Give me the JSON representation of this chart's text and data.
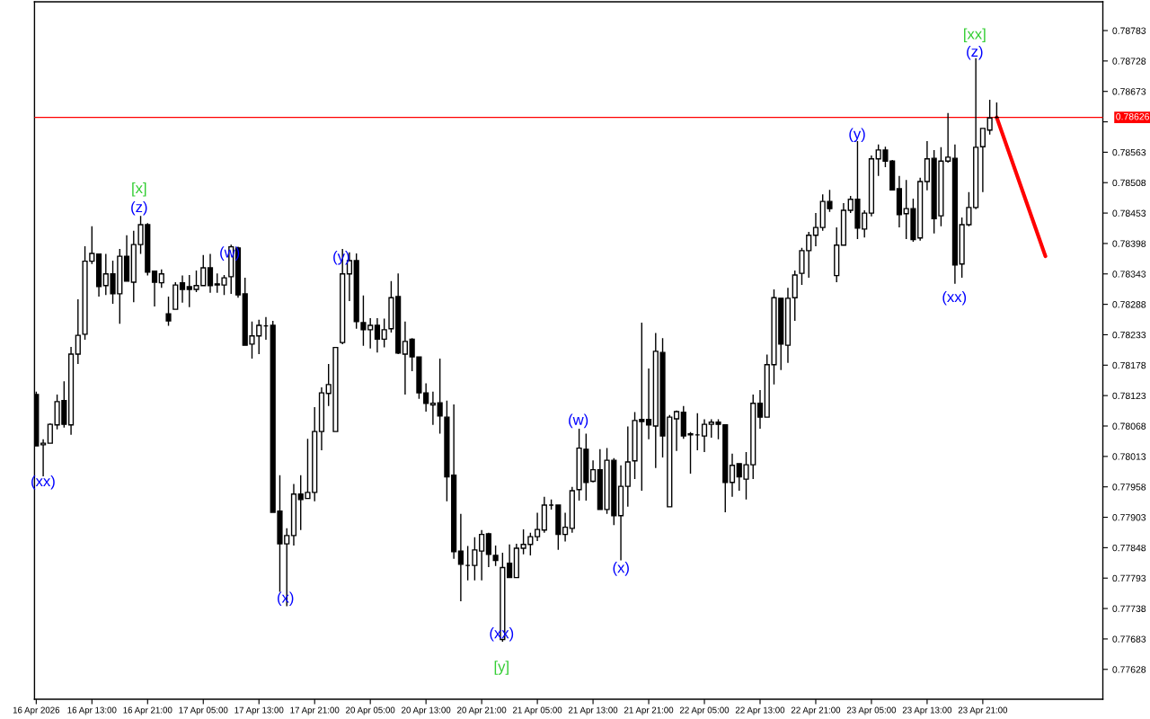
{
  "chart_data": {
    "type": "candlestick",
    "categories": [
      "16 Apr 2026",
      null,
      null,
      null,
      null,
      null,
      null,
      null,
      "16 Apr 13:00",
      null,
      null,
      null,
      null,
      null,
      null,
      null,
      "16 Apr 21:00",
      null,
      null,
      null,
      null,
      null,
      null,
      null,
      "17 Apr 05:00",
      null,
      null,
      null,
      null,
      null,
      null,
      null,
      "17 Apr 13:00",
      null,
      null,
      null,
      null,
      null,
      null,
      null,
      "17 Apr 21:00",
      null,
      null,
      null,
      null,
      null,
      null,
      null,
      "20 Apr 05:00",
      null,
      null,
      null,
      null,
      null,
      null,
      null,
      "20 Apr 13:00",
      null,
      null,
      null,
      null,
      null,
      null,
      null,
      "20 Apr 21:00",
      null,
      null,
      null,
      null,
      null,
      null,
      null,
      "21 Apr 05:00",
      null,
      null,
      null,
      null,
      null,
      null,
      null,
      "21 Apr 13:00",
      null,
      null,
      null,
      null,
      null,
      null,
      null,
      "21 Apr 21:00",
      null,
      null,
      null,
      null,
      null,
      null,
      null,
      "22 Apr 05:00",
      null,
      null,
      null,
      null,
      null,
      null,
      null,
      "22 Apr 13:00",
      null,
      null,
      null,
      null,
      null,
      null,
      null,
      "22 Apr 21:00",
      null,
      null,
      null,
      null,
      null,
      null,
      null,
      "23 Apr 05:00",
      null,
      null,
      null,
      null,
      null,
      null,
      null,
      "23 Apr 13:00",
      null,
      null,
      null,
      null,
      null,
      null,
      null,
      "23 Apr 21:00",
      null,
      null,
      null,
      null,
      null,
      null,
      null,
      null,
      null,
      null,
      null,
      null,
      null,
      null,
      null,
      null
    ],
    "ohlc": [
      [
        0.78125,
        0.7813,
        0.78032,
        0.78032
      ],
      [
        0.78034,
        0.78044,
        0.77977,
        0.78037
      ],
      [
        0.78037,
        0.78073,
        0.78036,
        0.78071
      ],
      [
        0.7807,
        0.78125,
        0.78062,
        0.78112
      ],
      [
        0.78114,
        0.78149,
        0.78065,
        0.78071
      ],
      [
        0.7807,
        0.78211,
        0.78052,
        0.78198
      ],
      [
        0.78198,
        0.78297,
        0.7818,
        0.78232
      ],
      [
        0.78234,
        0.78393,
        0.78224,
        0.78366
      ],
      [
        0.78366,
        0.78429,
        0.78361,
        0.7838
      ],
      [
        0.78379,
        0.78379,
        0.78302,
        0.7832
      ],
      [
        0.78322,
        0.78379,
        0.78305,
        0.78343
      ],
      [
        0.78343,
        0.78367,
        0.78289,
        0.78307
      ],
      [
        0.78307,
        0.78388,
        0.78253,
        0.78375
      ],
      [
        0.78375,
        0.78413,
        0.7833,
        0.7833
      ],
      [
        0.78328,
        0.78421,
        0.78292,
        0.78396
      ],
      [
        0.78396,
        0.78448,
        0.78379,
        0.78432
      ],
      [
        0.78432,
        0.78435,
        0.7834,
        0.78346
      ],
      [
        0.78348,
        0.78349,
        0.78284,
        0.78328
      ],
      [
        0.78327,
        0.78351,
        0.78318,
        0.78343
      ],
      [
        0.78271,
        0.78302,
        0.78249,
        0.78258
      ],
      [
        0.78279,
        0.78328,
        0.78279,
        0.78323
      ],
      [
        0.78327,
        0.7834,
        0.78291,
        0.78315
      ],
      [
        0.7832,
        0.78341,
        0.78283,
        0.78315
      ],
      [
        0.78315,
        0.78349,
        0.7831,
        0.78322
      ],
      [
        0.78322,
        0.78377,
        0.78322,
        0.78354
      ],
      [
        0.78354,
        0.78379,
        0.78309,
        0.78322
      ],
      [
        0.78325,
        0.78344,
        0.78309,
        0.78323
      ],
      [
        0.78323,
        0.78341,
        0.78305,
        0.78336
      ],
      [
        0.78338,
        0.78396,
        0.78307,
        0.78392
      ],
      [
        0.7839,
        0.78392,
        0.783,
        0.78305
      ],
      [
        0.78307,
        0.78336,
        0.78213,
        0.78214
      ],
      [
        0.78216,
        0.78257,
        0.7819,
        0.78231
      ],
      [
        0.78231,
        0.7826,
        0.78198,
        0.7825
      ],
      [
        0.78249,
        0.78265,
        0.78224,
        0.78249
      ],
      [
        0.7825,
        0.78258,
        0.77912,
        0.77912
      ],
      [
        0.77914,
        0.77979,
        0.77768,
        0.77855
      ],
      [
        0.77855,
        0.77883,
        0.77742,
        0.7787
      ],
      [
        0.7787,
        0.77963,
        0.77852,
        0.77945
      ],
      [
        0.77945,
        0.77979,
        0.7788,
        0.77935
      ],
      [
        0.77937,
        0.78045,
        0.77937,
        0.77948
      ],
      [
        0.77948,
        0.78102,
        0.77932,
        0.78058
      ],
      [
        0.78058,
        0.78138,
        0.78024,
        0.78128
      ],
      [
        0.78127,
        0.7818,
        0.78104,
        0.78143
      ],
      [
        0.78058,
        0.7821,
        0.78058,
        0.7821
      ],
      [
        0.78219,
        0.78388,
        0.78216,
        0.78343
      ],
      [
        0.78343,
        0.78382,
        0.78294,
        0.78367
      ],
      [
        0.78367,
        0.7838,
        0.78244,
        0.78257
      ],
      [
        0.78255,
        0.78304,
        0.78213,
        0.78242
      ],
      [
        0.78242,
        0.78263,
        0.78208,
        0.7825
      ],
      [
        0.7825,
        0.78263,
        0.78201,
        0.78225
      ],
      [
        0.78225,
        0.78262,
        0.7821,
        0.78242
      ],
      [
        0.78244,
        0.7833,
        0.78237,
        0.783
      ],
      [
        0.78302,
        0.78344,
        0.78198,
        0.782
      ],
      [
        0.78198,
        0.78257,
        0.78125,
        0.78221
      ],
      [
        0.78225,
        0.78227,
        0.78167,
        0.78193
      ],
      [
        0.78193,
        0.78193,
        0.78117,
        0.78128
      ],
      [
        0.78128,
        0.78145,
        0.78094,
        0.78109
      ],
      [
        0.78106,
        0.7813,
        0.7807,
        0.78109
      ],
      [
        0.7811,
        0.7819,
        0.78054,
        0.78086
      ],
      [
        0.78084,
        0.78114,
        0.77932,
        0.77976
      ],
      [
        0.77979,
        0.78107,
        0.77828,
        0.77841
      ],
      [
        0.77842,
        0.77909,
        0.77751,
        0.77818
      ],
      [
        0.77816,
        0.77851,
        0.77789,
        0.77816
      ],
      [
        0.77816,
        0.77867,
        0.77789,
        0.77844
      ],
      [
        0.77842,
        0.7788,
        0.77789,
        0.77872
      ],
      [
        0.77873,
        0.77875,
        0.77813,
        0.77836
      ],
      [
        0.77834,
        0.77852,
        0.77815,
        0.77825
      ],
      [
        0.77682,
        0.77839,
        0.77678,
        0.77812
      ],
      [
        0.7782,
        0.77854,
        0.77794,
        0.77794
      ],
      [
        0.77794,
        0.77855,
        0.77794,
        0.77847
      ],
      [
        0.77847,
        0.77881,
        0.77836,
        0.77854
      ],
      [
        0.77854,
        0.77875,
        0.77834,
        0.77868
      ],
      [
        0.77868,
        0.77911,
        0.7786,
        0.77881
      ],
      [
        0.7788,
        0.7794,
        0.77875,
        0.77925
      ],
      [
        0.77925,
        0.77935,
        0.77917,
        0.77925
      ],
      [
        0.77925,
        0.77925,
        0.77844,
        0.77872
      ],
      [
        0.77872,
        0.77911,
        0.77859,
        0.77885
      ],
      [
        0.77883,
        0.77958,
        0.77875,
        0.77951
      ],
      [
        0.77953,
        0.78063,
        0.77933,
        0.78028
      ],
      [
        0.78026,
        0.78054,
        0.77933,
        0.77966
      ],
      [
        0.77968,
        0.78006,
        0.77966,
        0.77989
      ],
      [
        0.77989,
        0.78026,
        0.77917,
        0.77917
      ],
      [
        0.77917,
        0.78028,
        0.77909,
        0.78006
      ],
      [
        0.78006,
        0.7801,
        0.77889,
        0.77906
      ],
      [
        0.77906,
        0.77997,
        0.77825,
        0.77959
      ],
      [
        0.77959,
        0.78067,
        0.77922,
        0.78003
      ],
      [
        0.78005,
        0.78093,
        0.77972,
        0.78078
      ],
      [
        0.7808,
        0.78255,
        0.77951,
        0.78076
      ],
      [
        0.7808,
        0.78172,
        0.78044,
        0.7807
      ],
      [
        0.78068,
        0.78236,
        0.77992,
        0.78203
      ],
      [
        0.78201,
        0.78227,
        0.78011,
        0.7805
      ],
      [
        0.77922,
        0.78088,
        0.77922,
        0.78084
      ],
      [
        0.78081,
        0.78096,
        0.78023,
        0.78094
      ],
      [
        0.78093,
        0.78104,
        0.78045,
        0.7805
      ],
      [
        0.78054,
        0.78057,
        0.77982,
        0.78052
      ],
      [
        0.78052,
        0.78091,
        0.78024,
        0.78052
      ],
      [
        0.7805,
        0.7808,
        0.78021,
        0.78071
      ],
      [
        0.78071,
        0.7808,
        0.78047,
        0.78075
      ],
      [
        0.78075,
        0.7808,
        0.78044,
        0.78071
      ],
      [
        0.7807,
        0.78071,
        0.77912,
        0.77966
      ],
      [
        0.77966,
        0.78018,
        0.7794,
        0.77997
      ],
      [
        0.78,
        0.78,
        0.77951,
        0.77976
      ],
      [
        0.77972,
        0.78021,
        0.77935,
        0.77998
      ],
      [
        0.77998,
        0.78125,
        0.77972,
        0.78109
      ],
      [
        0.78109,
        0.78133,
        0.78063,
        0.78084
      ],
      [
        0.78084,
        0.78197,
        0.78084,
        0.78179
      ],
      [
        0.78179,
        0.78315,
        0.78143,
        0.783
      ],
      [
        0.78299,
        0.783,
        0.78169,
        0.78216
      ],
      [
        0.78214,
        0.78318,
        0.78182,
        0.78299
      ],
      [
        0.783,
        0.78349,
        0.78258,
        0.78341
      ],
      [
        0.78344,
        0.7839,
        0.78323,
        0.78385
      ],
      [
        0.78385,
        0.78419,
        0.78336,
        0.78413
      ],
      [
        0.78413,
        0.78453,
        0.78393,
        0.78427
      ],
      [
        0.78427,
        0.78487,
        0.78421,
        0.78474
      ],
      [
        0.78474,
        0.78495,
        0.78455,
        0.78461
      ],
      [
        0.7834,
        0.78427,
        0.78328,
        0.78395
      ],
      [
        0.78395,
        0.78471,
        0.78395,
        0.78458
      ],
      [
        0.78458,
        0.78484,
        0.78453,
        0.78478
      ],
      [
        0.78478,
        0.78583,
        0.78406,
        0.78426
      ],
      [
        0.78424,
        0.78458,
        0.78409,
        0.78453
      ],
      [
        0.78453,
        0.78557,
        0.78447,
        0.78551
      ],
      [
        0.78551,
        0.78577,
        0.7852,
        0.78567
      ],
      [
        0.78567,
        0.78573,
        0.78536,
        0.78547
      ],
      [
        0.78547,
        0.78549,
        0.78494,
        0.78495
      ],
      [
        0.78497,
        0.7852,
        0.78427,
        0.7845
      ],
      [
        0.78452,
        0.78513,
        0.78406,
        0.78461
      ],
      [
        0.78461,
        0.78479,
        0.78401,
        0.78405
      ],
      [
        0.78408,
        0.78517,
        0.78403,
        0.7851
      ],
      [
        0.7851,
        0.78583,
        0.78494,
        0.78551
      ],
      [
        0.78552,
        0.78567,
        0.78416,
        0.78443
      ],
      [
        0.78448,
        0.78572,
        0.78429,
        0.78547
      ],
      [
        0.78547,
        0.78634,
        0.78544,
        0.78554
      ],
      [
        0.78552,
        0.78577,
        0.78325,
        0.78359
      ],
      [
        0.78361,
        0.78445,
        0.78336,
        0.78432
      ],
      [
        0.78432,
        0.78491,
        0.78429,
        0.78463
      ],
      [
        0.78463,
        0.78733,
        0.7846,
        0.78572
      ],
      [
        0.78573,
        0.78606,
        0.78491,
        0.78606
      ],
      [
        0.78603,
        0.78658,
        0.78595,
        0.78625
      ],
      [
        0.78626,
        0.78653,
        0.78624,
        0.78626
      ],
      null,
      null,
      null,
      null,
      null,
      null,
      null,
      null,
      null,
      null,
      null,
      null,
      null,
      null
    ],
    "series": [
      {
        "type": "line",
        "color": "#ff0000",
        "values": [
          null,
          null,
          null,
          null,
          null,
          null,
          null,
          null,
          null,
          null,
          null,
          null,
          null,
          null,
          null,
          null,
          null,
          null,
          null,
          null,
          null,
          null,
          null,
          null,
          null,
          null,
          null,
          null,
          null,
          null,
          null,
          null,
          null,
          null,
          null,
          null,
          null,
          null,
          null,
          null,
          null,
          null,
          null,
          null,
          null,
          null,
          null,
          null,
          null,
          null,
          null,
          null,
          null,
          null,
          null,
          null,
          null,
          null,
          null,
          null,
          null,
          null,
          null,
          null,
          null,
          null,
          null,
          null,
          null,
          null,
          null,
          null,
          null,
          null,
          null,
          null,
          null,
          null,
          null,
          null,
          null,
          null,
          null,
          null,
          null,
          null,
          null,
          null,
          null,
          null,
          null,
          null,
          null,
          null,
          null,
          null,
          null,
          null,
          null,
          null,
          null,
          null,
          null,
          null,
          null,
          null,
          null,
          null,
          null,
          null,
          null,
          null,
          null,
          null,
          null,
          null,
          null,
          null,
          null,
          null,
          null,
          null,
          null,
          null,
          null,
          null,
          null,
          null,
          null,
          null,
          null,
          null,
          null,
          null,
          null,
          null,
          null,
          null,
          0.78626,
          null,
          null,
          null,
          null,
          null,
          null,
          0.78375,
          null,
          null,
          null,
          null,
          null,
          null,
          null
        ]
      }
    ],
    "annotations": [
      "(xx)",
      "[x]",
      "(z)",
      "(w)",
      "(x)",
      "(y)",
      "(xx)",
      "[y]",
      "(w)",
      "(x)",
      "(y)",
      "(xx)",
      "[xx]",
      "(z)"
    ],
    "ref_lines": [
      {
        "axis": "y",
        "value": 0.78626,
        "label": "0.78626",
        "color": "#ff0000"
      }
    ],
    "ylim": [
      0.77574,
      0.78835
    ],
    "yticks": [
      0.77628,
      0.77683,
      0.77738,
      0.77793,
      0.77848,
      0.77903,
      0.77958,
      0.78013,
      0.78068,
      0.78123,
      0.78178,
      0.78233,
      0.78288,
      0.78343,
      0.78398,
      0.78453,
      0.78508,
      0.78563,
      {
        "value": 0.78618,
        "label": null
      },
      0.78673,
      0.78728,
      0.78783
    ]
  }
}
